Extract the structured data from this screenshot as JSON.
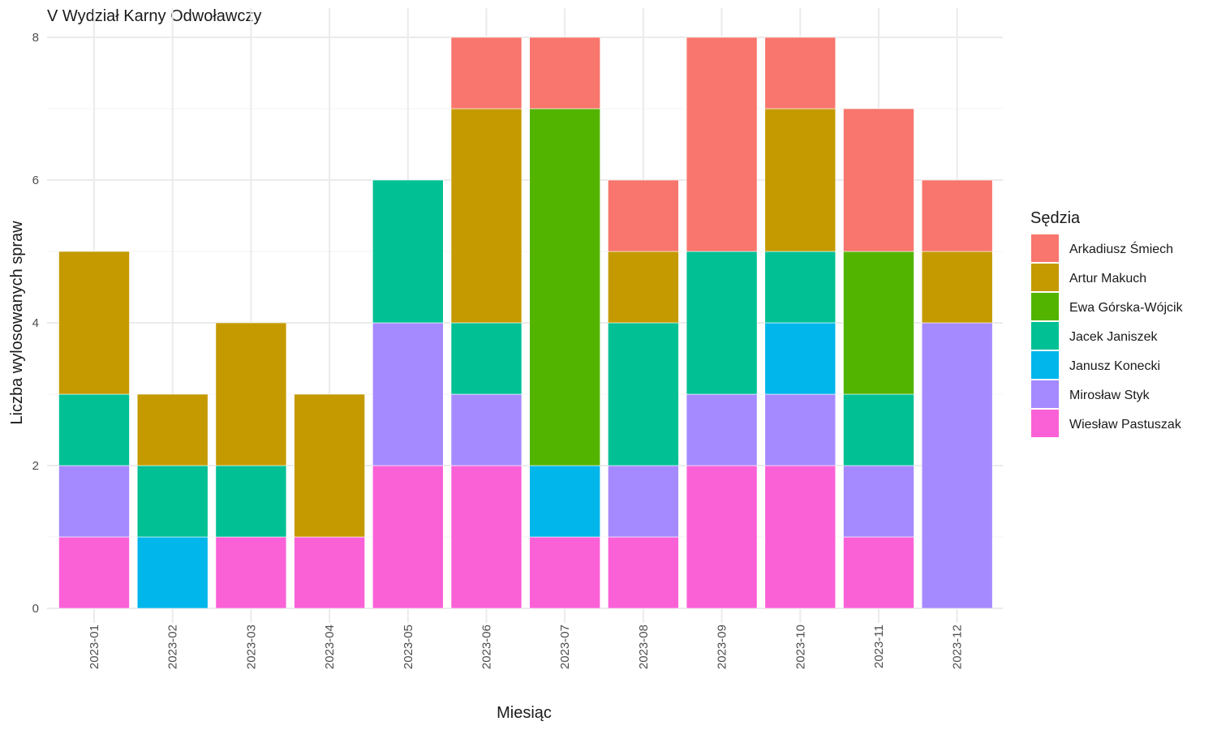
{
  "chart_data": {
    "type": "bar",
    "stacked": true,
    "title": "V Wydział Karny Odwoławczy",
    "xlabel": "Miesiąc",
    "ylabel": "Liczba wylosowanych spraw",
    "ylim": [
      0,
      8
    ],
    "yticks": [
      0,
      2,
      4,
      6,
      8
    ],
    "grid": true,
    "legend_title": "Sędzia",
    "legend_position": "right",
    "categories": [
      "2023-01",
      "2023-02",
      "2023-03",
      "2023-04",
      "2023-05",
      "2023-06",
      "2023-07",
      "2023-08",
      "2023-09",
      "2023-10",
      "2023-11",
      "2023-12"
    ],
    "series": [
      {
        "name": "Arkadiusz Śmiech",
        "color": "#F8766D",
        "values": [
          0,
          0,
          0,
          0,
          0,
          1,
          1,
          1,
          3,
          1,
          2,
          1
        ]
      },
      {
        "name": "Artur Makuch",
        "color": "#C49A00",
        "values": [
          2,
          1,
          2,
          2,
          0,
          3,
          0,
          1,
          0,
          2,
          0,
          1
        ]
      },
      {
        "name": "Ewa Górska-Wójcik",
        "color": "#53B400",
        "values": [
          0,
          0,
          0,
          0,
          0,
          0,
          5,
          0,
          0,
          0,
          2,
          0
        ]
      },
      {
        "name": "Jacek Janiszek",
        "color": "#00C094",
        "values": [
          1,
          1,
          1,
          0,
          2,
          1,
          0,
          2,
          2,
          1,
          1,
          0
        ]
      },
      {
        "name": "Janusz Konecki",
        "color": "#00B6EB",
        "values": [
          0,
          1,
          0,
          0,
          0,
          0,
          1,
          0,
          0,
          1,
          0,
          0
        ]
      },
      {
        "name": "Mirosław Styk",
        "color": "#A58AFF",
        "values": [
          1,
          0,
          0,
          0,
          2,
          1,
          0,
          1,
          1,
          1,
          1,
          4
        ]
      },
      {
        "name": "Wiesław Pastuszak",
        "color": "#FB61D7",
        "values": [
          1,
          0,
          1,
          1,
          2,
          2,
          1,
          1,
          2,
          2,
          1,
          0
        ]
      }
    ]
  }
}
